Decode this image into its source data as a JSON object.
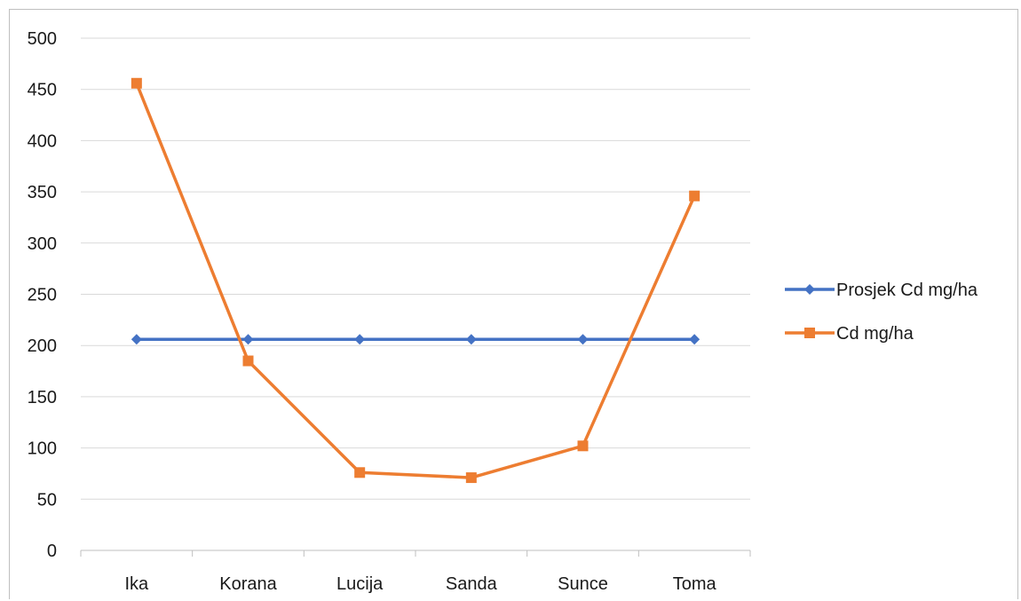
{
  "chart_data": {
    "type": "line",
    "categories": [
      "Ika",
      "Korana",
      "Lucija",
      "Sanda",
      "Sunce",
      "Toma"
    ],
    "series": [
      {
        "name": "Prosjek Cd mg/ha",
        "values": [
          206,
          206,
          206,
          206,
          206,
          206
        ],
        "color": "#4472c4",
        "marker": "diamond"
      },
      {
        "name": "Cd mg/ha",
        "values": [
          456,
          185,
          76,
          71,
          102,
          346
        ],
        "color": "#ed7d31",
        "marker": "square"
      }
    ],
    "title": "",
    "xlabel": "",
    "ylabel": "",
    "ylim": [
      0,
      500
    ],
    "yticks": [
      "0",
      "50",
      "100",
      "150",
      "200",
      "250",
      "300",
      "350",
      "400",
      "450",
      "500"
    ],
    "grid": true,
    "legend_position": "right"
  }
}
